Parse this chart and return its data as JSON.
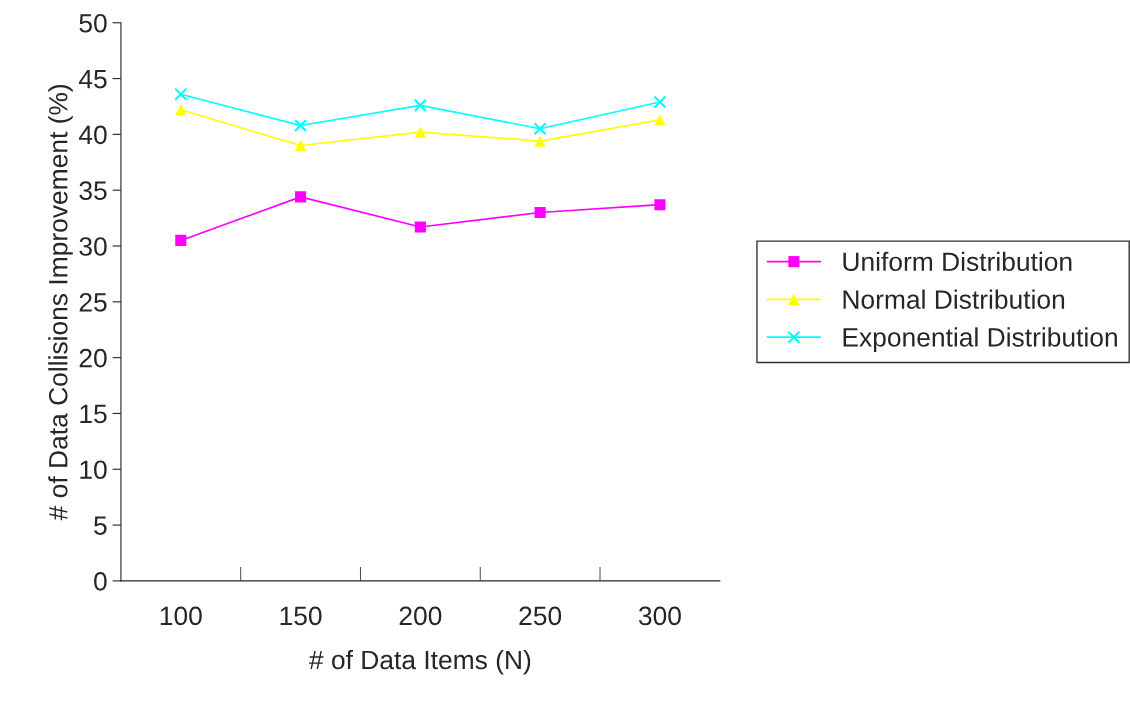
{
  "chart_data": {
    "type": "line",
    "xlabel": "# of Data Items (N)",
    "ylabel": "# of Data Collisions Improvement (%)",
    "categories": [
      "100",
      "150",
      "200",
      "250",
      "300"
    ],
    "series": [
      {
        "name": "Uniform Distribution",
        "color": "#ff00ff",
        "marker": "square",
        "values": [
          30.5,
          34.4,
          31.7,
          33.0,
          33.7
        ]
      },
      {
        "name": "Normal Distribution",
        "color": "#ffff00",
        "marker": "triangle",
        "values": [
          42.2,
          39.0,
          40.2,
          39.4,
          41.3
        ]
      },
      {
        "name": "Exponential Distribution",
        "color": "#00ffff",
        "marker": "cross",
        "values": [
          43.6,
          40.8,
          42.6,
          40.5,
          42.9
        ]
      }
    ],
    "ylim": [
      0,
      50
    ],
    "yticks": [
      0,
      5,
      10,
      15,
      20,
      25,
      30,
      35,
      40,
      45,
      50
    ],
    "grid": false,
    "legend": "right",
    "line_style": "solid"
  }
}
